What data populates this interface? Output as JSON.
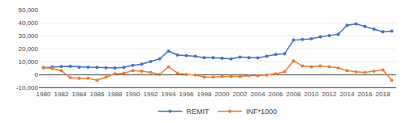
{
  "chart_data": {
    "type": "line",
    "x": [
      1980,
      1981,
      1982,
      1983,
      1984,
      1985,
      1986,
      1987,
      1988,
      1989,
      1990,
      1991,
      1992,
      1993,
      1994,
      1995,
      1996,
      1997,
      1998,
      1999,
      2000,
      2001,
      2002,
      2003,
      2004,
      2005,
      2006,
      2007,
      2008,
      2009,
      2010,
      2011,
      2012,
      2013,
      2014,
      2015,
      2016,
      2017,
      2018,
      2019
    ],
    "series": [
      {
        "name": "REMIT",
        "color": "#4472C4",
        "marker": "circle",
        "values": [
          5100,
          5800,
          6100,
          6200,
          5700,
          5600,
          5400,
          5200,
          5000,
          5500,
          7000,
          8000,
          10000,
          12000,
          18000,
          15000,
          14500,
          14000,
          13000,
          13000,
          12500,
          12000,
          13500,
          13000,
          12800,
          14000,
          15500,
          16000,
          26500,
          27000,
          27500,
          29000,
          30000,
          31000,
          38000,
          39000,
          37000,
          35000,
          33000,
          33500
        ]
      },
      {
        "name": "INF*1000",
        "color": "#ED7D31",
        "marker": "circle",
        "values": [
          5500,
          4500,
          3000,
          -2500,
          -3000,
          -3000,
          -4500,
          -2000,
          500,
          1000,
          3000,
          2500,
          1500,
          0,
          6000,
          1000,
          0,
          -500,
          -2000,
          -2000,
          -1500,
          -1500,
          -1500,
          -1000,
          -1000,
          -500,
          500,
          2000,
          10500,
          6500,
          6000,
          6500,
          6000,
          5000,
          3000,
          2000,
          1500,
          2500,
          3500,
          -4500
        ]
      }
    ],
    "xlim": [
      1979.5,
      2019.5
    ],
    "xticks": [
      1980,
      1982,
      1984,
      1986,
      1988,
      1990,
      1992,
      1994,
      1996,
      1998,
      2000,
      2002,
      2004,
      2006,
      2008,
      2010,
      2012,
      2014,
      2016,
      2018
    ],
    "ylim": [
      -10000,
      50000
    ],
    "yticks": [
      {
        "value": -10000,
        "label": "-10,000"
      },
      0,
      {
        "value": 10000,
        "label": "10,000"
      },
      {
        "value": 20000,
        "label": "20,000"
      },
      {
        "value": 30000,
        "label": "30,000"
      },
      {
        "value": 40000,
        "label": "40,000"
      },
      {
        "value": 50000,
        "label": "50,000"
      }
    ],
    "grid": "y",
    "legend": "bottom"
  }
}
